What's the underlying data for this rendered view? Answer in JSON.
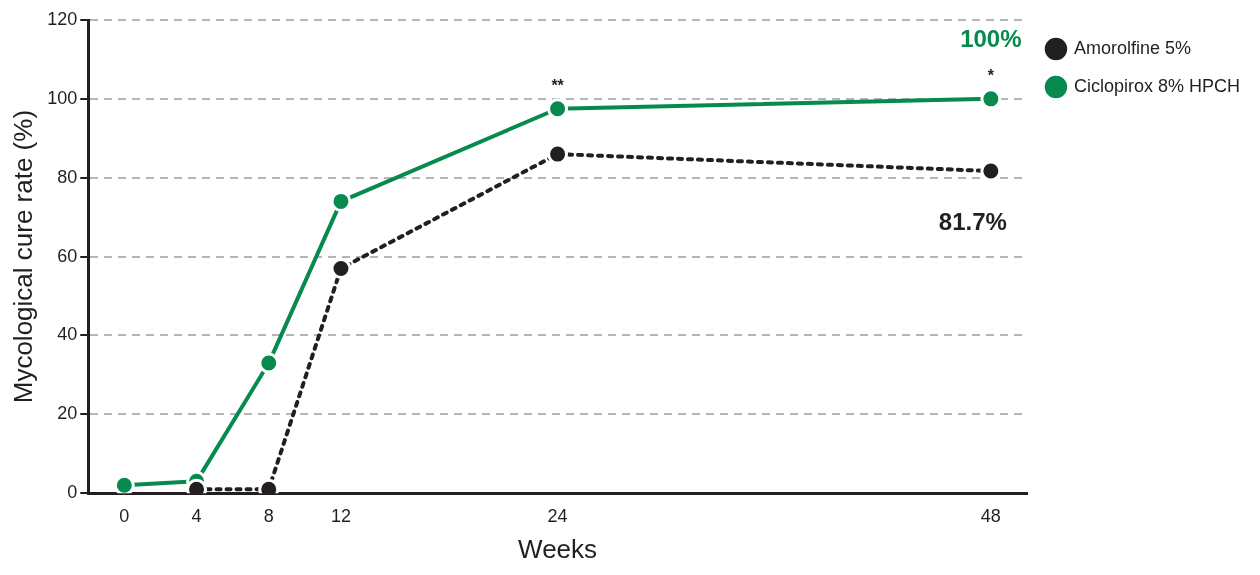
{
  "chart_data": {
    "type": "line",
    "xlabel": "Weeks",
    "ylabel": "Mycological cure rate (%)",
    "x": [
      0,
      4,
      8,
      12,
      24,
      48
    ],
    "series": [
      {
        "name": "Ciclopirox 8% HPCH",
        "color": "#078a4e",
        "line_style": "solid",
        "values": [
          2,
          3,
          33,
          74,
          97.5,
          100
        ],
        "value_labels": [
          null,
          null,
          null,
          null,
          null,
          "100%"
        ]
      },
      {
        "name": "Amorolfine 5%",
        "color": "#231f20",
        "line_style": "dotted",
        "values": [
          null,
          1,
          1,
          57,
          86,
          81.7
        ],
        "value_labels": [
          null,
          null,
          null,
          null,
          null,
          "81.7%"
        ]
      }
    ],
    "xlim": [
      -2,
      50
    ],
    "xticks": [
      0,
      4,
      8,
      12,
      24,
      48
    ],
    "ylim": [
      0,
      120
    ],
    "yticks": [
      0,
      20,
      40,
      60,
      80,
      100,
      120
    ],
    "grid": "y",
    "legend": "top right",
    "marker": "circle",
    "annotations": [
      {
        "text": "**",
        "x": 24,
        "y": 97.5
      },
      {
        "text": "*",
        "x": 48,
        "y": 100
      }
    ]
  }
}
